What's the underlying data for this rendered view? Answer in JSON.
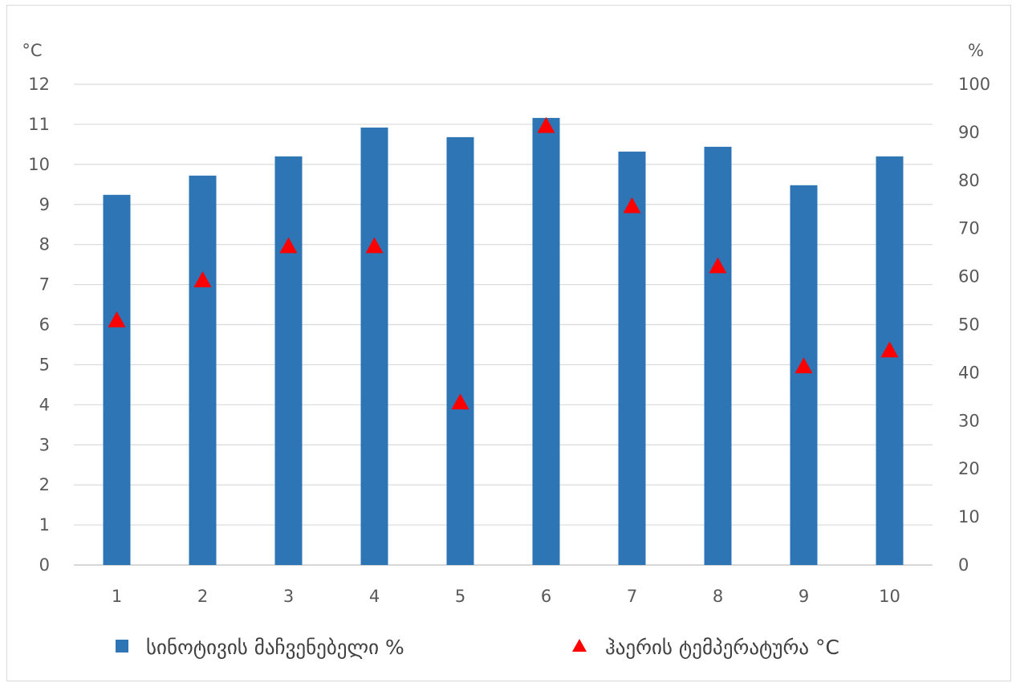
{
  "chart_data": {
    "type": "bar",
    "categories": [
      "1",
      "2",
      "3",
      "4",
      "5",
      "6",
      "7",
      "8",
      "9",
      "10"
    ],
    "series": [
      {
        "name": "სინოტივის მაჩვენებელი %",
        "type": "bar",
        "axis": "right",
        "color": "#2e75b6",
        "values": [
          77,
          81,
          85,
          91,
          89,
          93,
          86,
          87,
          79,
          85
        ]
      },
      {
        "name": "ჰაერის ტემპერატურა °C",
        "type": "scatter",
        "axis": "left",
        "marker": "triangle",
        "color": "#ff0000",
        "values": [
          6.1,
          7.1,
          7.95,
          7.95,
          4.05,
          10.95,
          8.95,
          7.45,
          4.95,
          5.35
        ]
      }
    ],
    "left_axis": {
      "unit_label": "°C",
      "ylim": [
        0,
        12
      ],
      "ticks": [
        "0",
        "1",
        "2",
        "3",
        "4",
        "5",
        "6",
        "7",
        "8",
        "9",
        "10",
        "11",
        "12"
      ]
    },
    "right_axis": {
      "unit_label": "%",
      "ylim": [
        0,
        100
      ],
      "ticks": [
        "0",
        "10",
        "20",
        "30",
        "40",
        "50",
        "60",
        "70",
        "80",
        "90",
        "100"
      ]
    },
    "grid": true,
    "legend_position": "bottom"
  }
}
